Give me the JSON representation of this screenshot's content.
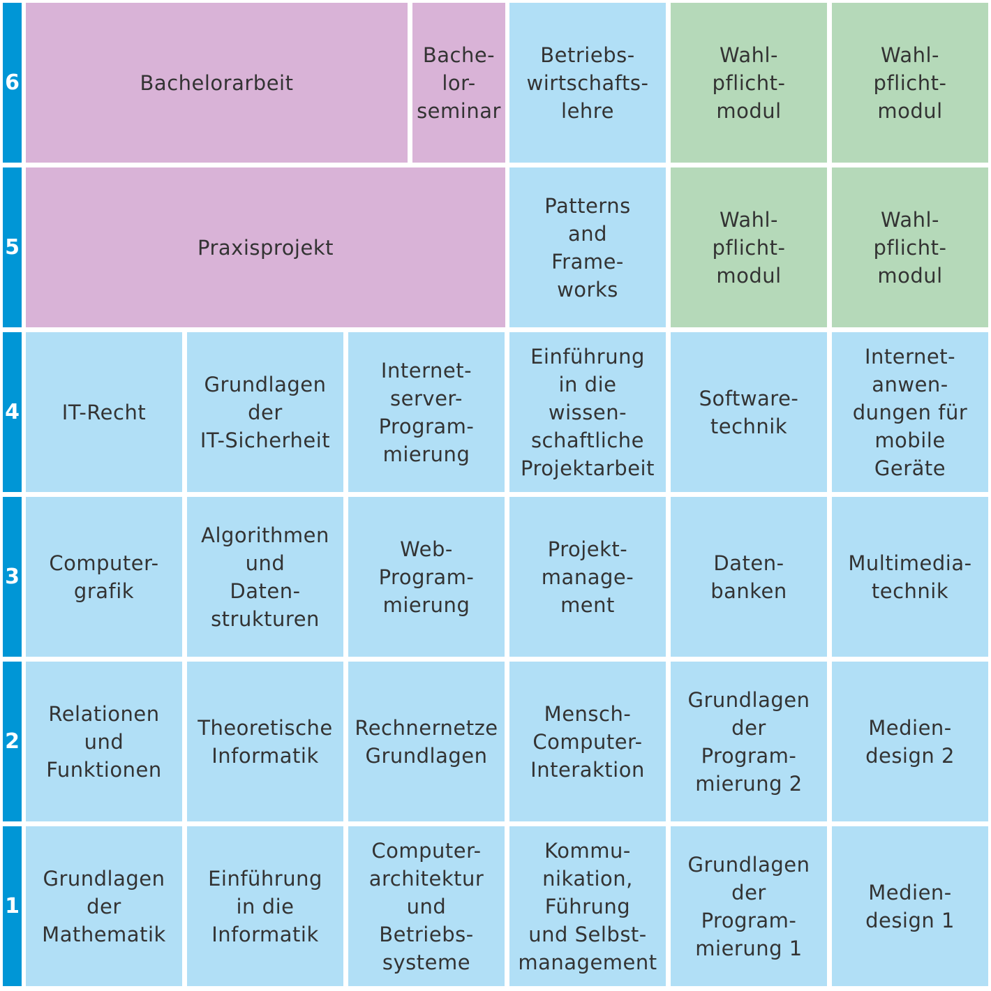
{
  "colors": {
    "semester_bar": "#0096d6",
    "thesis": "#d9b3d7",
    "core": "#b1dff6",
    "elective": "#b5d9b9",
    "text": "#333333"
  },
  "semesters": [
    "1",
    "2",
    "3",
    "4",
    "5",
    "6"
  ],
  "modules": {
    "s6": {
      "bachelorarbeit": "Bachelorarbeit",
      "bachelorseminar": "Bache-\nlor-\nseminar",
      "bwl": "Betriebs-\nwirtschafts-\nlehre",
      "wpm1": "Wahl-\npflicht-\nmodul",
      "wpm2": "Wahl-\npflicht-\nmodul"
    },
    "s5": {
      "praxisprojekt": "Praxisprojekt",
      "patterns": "Patterns\nand\nFrame-\nworks",
      "wpm1": "Wahl-\npflicht-\nmodul",
      "wpm2": "Wahl-\npflicht-\nmodul"
    },
    "s4": [
      "IT-Recht",
      "Grundlagen\nder\nIT-Sicherheit",
      "Internet-\nserver-\nProgram-\nmierung",
      "Einführung\nin die\nwissen-\nschaftliche\nProjektarbeit",
      "Software-\ntechnik",
      "Internet-\nanwen-\ndungen für\nmobile\nGeräte"
    ],
    "s3": [
      "Computer-\ngrafik",
      "Algorithmen\nund\nDaten-\nstrukturen",
      "Web-\nProgram-\nmierung",
      "Projekt-\nmanage-\nment",
      "Daten-\nbanken",
      "Multimedia-\ntechnik"
    ],
    "s2": [
      "Relationen\nund\nFunktionen",
      "Theoretische\nInformatik",
      "Rechnernetze\nGrundlagen",
      "Mensch-\nComputer-\nInteraktion",
      "Grundlagen\nder\nProgram-\nmierung 2",
      "Medien-\ndesign 2"
    ],
    "s1": [
      "Grundlagen\nder\nMathematik",
      "Einführung\nin die\nInformatik",
      "Computer-\narchitektur\nund\nBetriebs-\nsysteme",
      "Kommu-\nnikation,\nFührung\nund Selbst-\nmanagement",
      "Grundlagen\nder\nProgram-\nmierung 1",
      "Medien-\ndesign 1"
    ]
  }
}
